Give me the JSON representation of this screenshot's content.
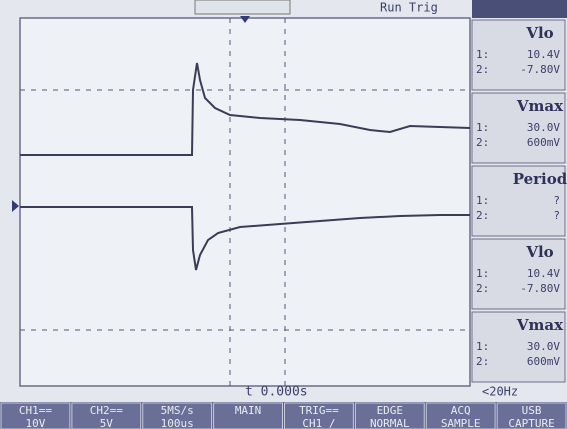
{
  "status": "Run Trig",
  "time_offset": "t 0.000s",
  "frequency": "<20Hz",
  "measurements": [
    {
      "label": "Vlo",
      "ch1": "10.4V",
      "ch2": "-7.80V"
    },
    {
      "label": "Vmax",
      "ch1": "30.0V",
      "ch2": "600mV"
    },
    {
      "label": "Period",
      "ch1": "?",
      "ch2": "?"
    },
    {
      "label": "Vlo",
      "ch1": "10.4V",
      "ch2": "-7.80V"
    },
    {
      "label": "Vmax",
      "ch1": "30.0V",
      "ch2": "600mV"
    }
  ],
  "channel_numbers": [
    "1:",
    "2:"
  ],
  "menu": [
    {
      "top": "CH1==",
      "bottom": "10V"
    },
    {
      "top": "CH2==",
      "bottom": "5V"
    },
    {
      "top": "5MS/s",
      "bottom": "100us"
    },
    {
      "top": "MAIN",
      "bottom": ""
    },
    {
      "top": "TRIG==",
      "bottom": "CH1 /"
    },
    {
      "top": "EDGE",
      "bottom": "NORMAL"
    },
    {
      "top": "ACQ",
      "bottom": "SAMPLE"
    },
    {
      "top": "USB",
      "bottom": "CAPTURE"
    }
  ]
}
